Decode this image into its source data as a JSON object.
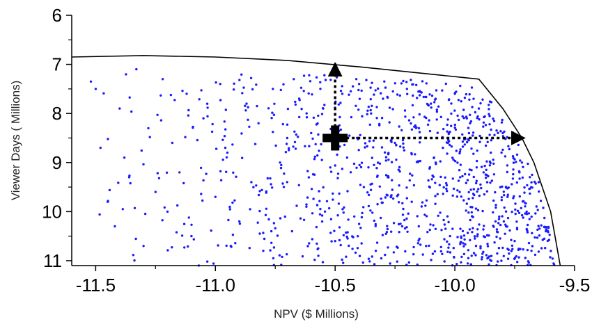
{
  "chart_data": {
    "type": "scatter",
    "title": "",
    "xlabel": "NPV ($ Millions)",
    "ylabel": "Viewer Days ( Millions)",
    "xlim": [
      -11.6,
      -9.5
    ],
    "ylim": [
      6,
      11.1
    ],
    "y_inverted": true,
    "grid": false,
    "x_ticks": [
      -11.5,
      -11.0,
      -10.5,
      -10.0,
      -9.5
    ],
    "x_tick_labels": [
      "-11.5",
      "-11.0",
      "-10.5",
      "-10.0",
      "-9.5"
    ],
    "y_ticks": [
      6,
      7,
      8,
      9,
      10,
      11
    ],
    "y_tick_labels": [
      "6",
      "7",
      "8",
      "9",
      "10",
      "11"
    ],
    "series": [
      {
        "marker": "dot",
        "color": "#1a1aff",
        "point_count_approx": 1100,
        "density_note_excluded": true,
        "points": [
          [
            -11.52,
            7.35
          ],
          [
            -11.5,
            7.5
          ],
          [
            -11.48,
            8.7
          ],
          [
            -11.45,
            9.8
          ],
          [
            -11.42,
            10.3
          ],
          [
            -11.4,
            7.9
          ],
          [
            -11.38,
            8.9
          ],
          [
            -11.36,
            9.3
          ],
          [
            -11.33,
            7.1
          ],
          [
            -11.3,
            10.7
          ],
          [
            -11.28,
            8.3
          ],
          [
            -11.25,
            9.6
          ],
          [
            -11.22,
            7.3
          ],
          [
            -11.2,
            10.0
          ],
          [
            -11.18,
            8.6
          ],
          [
            -11.15,
            9.2
          ],
          [
            -11.12,
            7.6
          ],
          [
            -11.1,
            10.5
          ],
          [
            -11.05,
            8.1
          ],
          [
            -11.0,
            9.7
          ],
          [
            -10.98,
            7.4
          ],
          [
            -10.95,
            8.8
          ],
          [
            -10.9,
            10.2
          ],
          [
            -10.87,
            7.8
          ],
          [
            -10.85,
            9.4
          ],
          [
            -10.82,
            8.2
          ],
          [
            -10.8,
            10.8
          ],
          [
            -10.76,
            7.5
          ],
          [
            -10.73,
            9.0
          ],
          [
            -10.7,
            8.5
          ],
          [
            -10.68,
            10.4
          ],
          [
            -10.65,
            7.7
          ],
          [
            -10.62,
            9.9
          ],
          [
            -10.6,
            8.4
          ],
          [
            -10.57,
            10.9
          ],
          [
            -10.55,
            7.9
          ],
          [
            -10.52,
            9.1
          ],
          [
            -10.5,
            10.6
          ],
          [
            -10.47,
            7.6
          ],
          [
            -10.45,
            8.9
          ],
          [
            -10.42,
            10.1
          ],
          [
            -10.4,
            7.4
          ],
          [
            -10.38,
            9.5
          ],
          [
            -10.35,
            8.0
          ],
          [
            -10.33,
            10.8
          ],
          [
            -10.3,
            7.7
          ],
          [
            -10.28,
            9.3
          ],
          [
            -10.25,
            8.6
          ],
          [
            -10.22,
            10.3
          ],
          [
            -10.2,
            7.5
          ],
          [
            -10.18,
            9.8
          ],
          [
            -10.15,
            8.3
          ],
          [
            -10.12,
            10.7
          ],
          [
            -10.1,
            7.8
          ],
          [
            -10.08,
            9.0
          ],
          [
            -10.05,
            8.7
          ],
          [
            -10.02,
            10.5
          ],
          [
            -10.0,
            7.6
          ],
          [
            -9.98,
            9.6
          ],
          [
            -9.95,
            8.1
          ],
          [
            -9.93,
            10.9
          ],
          [
            -9.9,
            7.9
          ],
          [
            -9.88,
            9.2
          ],
          [
            -9.85,
            8.8
          ],
          [
            -9.83,
            10.2
          ],
          [
            -9.8,
            8.4
          ],
          [
            -9.78,
            9.7
          ],
          [
            -9.75,
            10.6
          ],
          [
            -9.72,
            9.0
          ],
          [
            -9.7,
            10.0
          ],
          [
            -9.68,
            10.8
          ],
          [
            -9.65,
            9.4
          ],
          [
            -9.62,
            10.4
          ]
        ]
      }
    ],
    "frontier_line": [
      [
        -11.6,
        6.85
      ],
      [
        -11.3,
        6.82
      ],
      [
        -11.0,
        6.85
      ],
      [
        -10.7,
        6.92
      ],
      [
        -10.4,
        7.05
      ],
      [
        -10.1,
        7.2
      ],
      [
        -9.9,
        7.3
      ],
      [
        -9.8,
        7.9
      ],
      [
        -9.72,
        8.5
      ],
      [
        -9.67,
        9.0
      ],
      [
        -9.6,
        10.0
      ],
      [
        -9.56,
        11.1
      ]
    ],
    "annotations": [
      {
        "type": "plus-marker",
        "x": -10.5,
        "y": 8.5
      },
      {
        "type": "dotted-arrow",
        "from": [
          -10.5,
          8.5
        ],
        "to": [
          -10.5,
          6.98
        ]
      },
      {
        "type": "dotted-arrow",
        "from": [
          -10.5,
          8.5
        ],
        "to": [
          -9.71,
          8.5
        ]
      }
    ]
  }
}
